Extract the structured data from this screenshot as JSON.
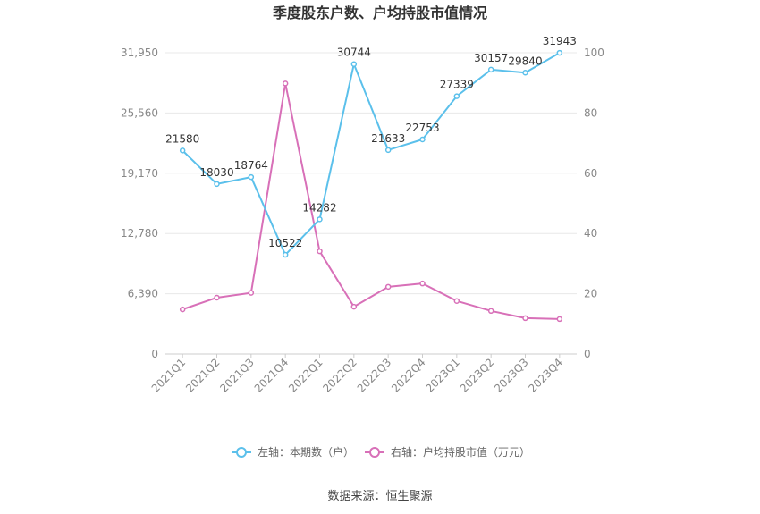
{
  "chart_data": {
    "type": "line",
    "title": "季度股东户数、户均持股市值情况",
    "categories": [
      "2021Q1",
      "2021Q2",
      "2021Q3",
      "2021Q4",
      "2022Q1",
      "2022Q2",
      "2022Q3",
      "2022Q4",
      "2023Q1",
      "2023Q2",
      "2023Q3",
      "2023Q4"
    ],
    "left_axis": {
      "ticks": [
        "0",
        "6,390",
        "12,780",
        "19,170",
        "25,560",
        "31,950"
      ],
      "min": 0,
      "max": 31950
    },
    "right_axis": {
      "ticks": [
        "0",
        "20",
        "40",
        "60",
        "80",
        "100"
      ],
      "min": 0,
      "max": 100
    },
    "grid": true,
    "legend_position": "bottom",
    "series": [
      {
        "name": "左轴：本期数（户）",
        "axis": "left",
        "color": "#5bc0eb",
        "values": [
          21580,
          18030,
          18764,
          10522,
          14282,
          30744,
          21633,
          22753,
          27339,
          30157,
          29840,
          31943
        ],
        "labels": [
          "21580",
          "18030",
          "18764",
          "10522",
          "14282",
          "30744",
          "21633",
          "22753",
          "27339",
          "30157",
          "29840",
          "31943"
        ]
      },
      {
        "name": "右轴：户均持股市值（万元）",
        "axis": "right",
        "color": "#d870b8",
        "values": [
          14.8,
          18.7,
          20.3,
          89.8,
          34.1,
          15.7,
          22.3,
          23.4,
          17.6,
          14.3,
          11.9,
          11.6
        ]
      }
    ]
  },
  "source": "数据来源：恒生聚源"
}
